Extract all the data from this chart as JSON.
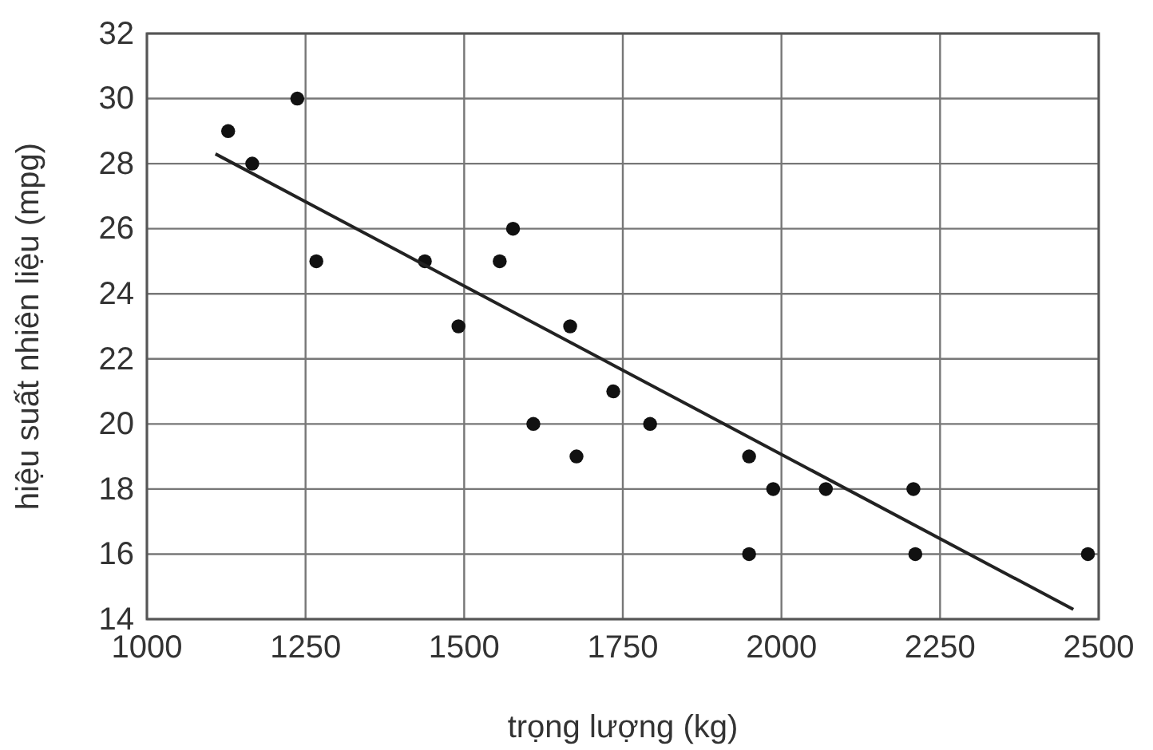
{
  "chart_data": {
    "type": "scatter",
    "xlabel": "trọng lượng (kg)",
    "ylabel": "hiệu suất nhiên liệu (mpg)",
    "xlim": [
      1000,
      2500
    ],
    "xticks": [
      1000,
      1250,
      1500,
      1750,
      2000,
      2250,
      2500
    ],
    "ylim": [
      14,
      32
    ],
    "yticks": [
      14,
      16,
      18,
      20,
      22,
      24,
      26,
      28,
      30,
      32
    ],
    "grid": true,
    "marker": "circle",
    "series": [
      {
        "color": "#111111",
        "x": [
          1128,
          1166,
          1237,
          1267,
          1438,
          1491,
          1556,
          1577,
          1609,
          1667,
          1677,
          1735,
          1793,
          1949,
          1949,
          1987,
          2070,
          2208,
          2211,
          2483
        ],
        "values": [
          29,
          28,
          30,
          25,
          25,
          23,
          25,
          26,
          20,
          23,
          19,
          21,
          20,
          19,
          16,
          18,
          18,
          18,
          16,
          16
        ]
      },
      {
        "type": "line",
        "marker": "none",
        "color": "#222222",
        "x": [
          1108,
          2460
        ],
        "values": [
          28.3,
          14.3
        ]
      }
    ]
  }
}
